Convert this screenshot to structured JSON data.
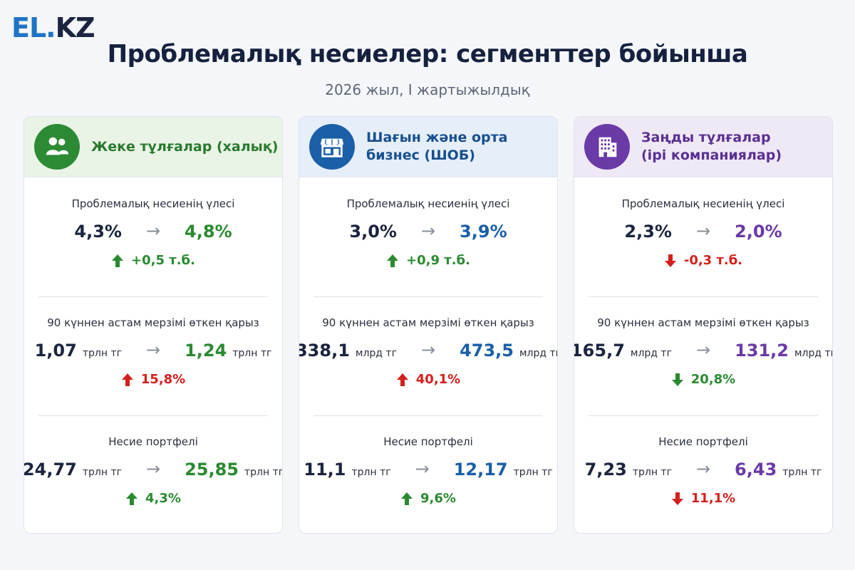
{
  "logo": {
    "part1": "EL",
    "dot": ".",
    "part2": "KZ"
  },
  "title": "Проблемалық несиелер: сегменттер бойынша",
  "subtitle": "2026 жыл, I жартыжылдық",
  "arrow_glyph": "→",
  "colors": {
    "green": "#2a8a30",
    "blue": "#1a5fa8",
    "purple": "#6a3aa6",
    "red": "#d4201c",
    "dark": "#1b2440"
  },
  "cards": [
    {
      "title_line1": "Жеке тұлғалар (халық)",
      "title_line2": "",
      "icon": "people-icon",
      "metrics": [
        {
          "label": "Проблемалық несиенің үлесі",
          "old": "4,3%",
          "old_unit": "",
          "new": "4,8%",
          "new_unit": "",
          "change": "+0,5 т.б.",
          "direction": "up",
          "tone": "pos"
        },
        {
          "label": "90 күннен астам мерзімі өткен қарыз",
          "old": "1,07",
          "old_unit": "трлн тг",
          "new": "1,24",
          "new_unit": "трлн тг",
          "change": "15,8%",
          "direction": "up",
          "tone": "neg"
        },
        {
          "label": "Несие портфелі",
          "old": "24,77",
          "old_unit": "трлн тг",
          "new": "25,85",
          "new_unit": "трлн тг",
          "change": "4,3%",
          "direction": "up",
          "tone": "pos"
        }
      ]
    },
    {
      "title_line1": "Шағын және орта",
      "title_line2": "бизнес (ШОБ)",
      "icon": "storefront-icon",
      "metrics": [
        {
          "label": "Проблемалық несиенің үлесі",
          "old": "3,0%",
          "old_unit": "",
          "new": "3,9%",
          "new_unit": "",
          "change": "+0,9 т.б.",
          "direction": "up",
          "tone": "pos"
        },
        {
          "label": "90 күннен астам мерзімі өткен қарыз",
          "old": "338,1",
          "old_unit": "млрд тг",
          "new": "473,5",
          "new_unit": "млрд тг",
          "change": "40,1%",
          "direction": "up",
          "tone": "neg"
        },
        {
          "label": "Несие портфелі",
          "old": "11,1",
          "old_unit": "трлн тг",
          "new": "12,17",
          "new_unit": "трлн тг",
          "change": "9,6%",
          "direction": "up",
          "tone": "pos"
        }
      ]
    },
    {
      "title_line1": "Заңды тұлғалар",
      "title_line2": "(ірі компаниялар)",
      "icon": "office-building-icon",
      "metrics": [
        {
          "label": "Проблемалық несиенің үлесі",
          "old": "2,3%",
          "old_unit": "",
          "new": "2,0%",
          "new_unit": "",
          "change": "-0,3 т.б.",
          "direction": "down",
          "tone": "neg"
        },
        {
          "label": "90 күннен астам мерзімі өткен қарыз",
          "old": "165,7",
          "old_unit": "млрд тг",
          "new": "131,2",
          "new_unit": "млрд тг",
          "change": "20,8%",
          "direction": "down",
          "tone": "pos"
        },
        {
          "label": "Несие портфелі",
          "old": "7,23",
          "old_unit": "трлн тг",
          "new": "6,43",
          "new_unit": "трлн тг",
          "change": "11,1%",
          "direction": "down",
          "tone": "neg"
        }
      ]
    }
  ]
}
